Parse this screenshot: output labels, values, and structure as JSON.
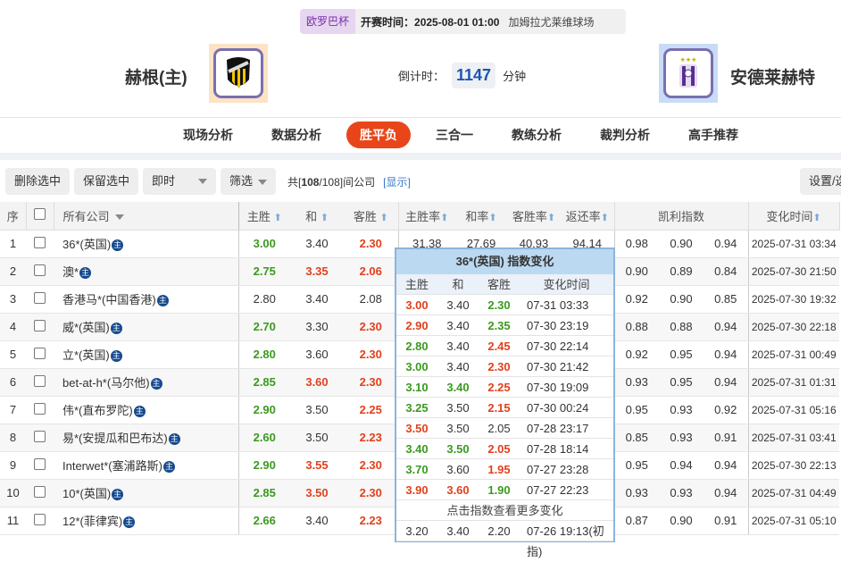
{
  "match": {
    "league": "欧罗巴杯",
    "kickoff": "开赛时间：2025-08-01 01:00",
    "venue": "加姆拉尤莱维球场",
    "home": "赫根(主)",
    "away": "安德莱赫特",
    "countdown_label": "倒计时：",
    "countdown_value": "1147",
    "countdown_unit": "分钟"
  },
  "nav": [
    "现场分析",
    "数据分析",
    "胜平负",
    "三合一",
    "教练分析",
    "裁判分析",
    "高手推荐"
  ],
  "nav_active": 2,
  "toolbar": {
    "delete": "删除选中",
    "keep": "保留选中",
    "mode": "即时",
    "filter": "筛选",
    "count_prefix": "共[",
    "count_a": "108",
    "count_b": "/108]间公司",
    "show": "[显示]",
    "settings": "设置/选择"
  },
  "columns": {
    "seq": "序",
    "company": "所有公司",
    "home": "主胜",
    "draw": "和",
    "away": "客胜",
    "home_rate": "主胜率",
    "draw_rate": "和率",
    "away_rate": "客胜率",
    "return_rate": "返还率",
    "kelly": "凯利指数",
    "time": "变化时间"
  },
  "badge": "主",
  "rows": [
    {
      "n": "1",
      "co": "36*(英国)",
      "h": "3.00",
      "hc": "g",
      "d": "3.40",
      "dc": "",
      "a": "2.30",
      "ac": "r",
      "hr": "31.38",
      "dr": "27.69",
      "ar": "40.93",
      "rr": "94.14",
      "k": [
        "0.98",
        "0.90",
        "0.94"
      ],
      "t": "2025-07-31 03:34"
    },
    {
      "n": "2",
      "co": "澳*",
      "h": "2.75",
      "hc": "g",
      "d": "3.35",
      "dc": "r",
      "a": "2.06",
      "ac": "r",
      "k": [
        "0.90",
        "0.89",
        "0.84"
      ],
      "t": "2025-07-30 21:50"
    },
    {
      "n": "3",
      "co": "香港马*(中国香港)",
      "h": "2.80",
      "hc": "",
      "d": "3.40",
      "dc": "",
      "a": "2.08",
      "ac": "",
      "k": [
        "0.92",
        "0.90",
        "0.85"
      ],
      "t": "2025-07-30 19:32"
    },
    {
      "n": "4",
      "co": "威*(英国)",
      "h": "2.70",
      "hc": "g",
      "d": "3.30",
      "dc": "",
      "a": "2.30",
      "ac": "r",
      "k": [
        "0.88",
        "0.88",
        "0.94"
      ],
      "t": "2025-07-30 22:18"
    },
    {
      "n": "5",
      "co": "立*(英国)",
      "h": "2.80",
      "hc": "g",
      "d": "3.60",
      "dc": "",
      "a": "2.30",
      "ac": "r",
      "k": [
        "0.92",
        "0.95",
        "0.94"
      ],
      "t": "2025-07-31 00:49"
    },
    {
      "n": "6",
      "co": "bet-at-h*(马尔他)",
      "h": "2.85",
      "hc": "g",
      "d": "3.60",
      "dc": "r",
      "a": "2.30",
      "ac": "r",
      "k": [
        "0.93",
        "0.95",
        "0.94"
      ],
      "t": "2025-07-31 01:31"
    },
    {
      "n": "7",
      "co": "伟*(直布罗陀)",
      "h": "2.90",
      "hc": "g",
      "d": "3.50",
      "dc": "",
      "a": "2.25",
      "ac": "r",
      "k": [
        "0.95",
        "0.93",
        "0.92"
      ],
      "t": "2025-07-31 05:16"
    },
    {
      "n": "8",
      "co": "易*(安提瓜和巴布达)",
      "h": "2.60",
      "hc": "g",
      "d": "3.50",
      "dc": "",
      "a": "2.23",
      "ac": "r",
      "k": [
        "0.85",
        "0.93",
        "0.91"
      ],
      "t": "2025-07-31 03:41"
    },
    {
      "n": "9",
      "co": "Interwet*(塞浦路斯)",
      "h": "2.90",
      "hc": "g",
      "d": "3.55",
      "dc": "r",
      "a": "2.30",
      "ac": "r",
      "k": [
        "0.95",
        "0.94",
        "0.94"
      ],
      "t": "2025-07-30 22:13"
    },
    {
      "n": "10",
      "co": "10*(英国)",
      "h": "2.85",
      "hc": "g",
      "d": "3.50",
      "dc": "r",
      "a": "2.30",
      "ac": "r",
      "k": [
        "0.93",
        "0.93",
        "0.94"
      ],
      "t": "2025-07-31 04:49"
    },
    {
      "n": "11",
      "co": "12*(菲律宾)",
      "h": "2.66",
      "hc": "g",
      "d": "3.40",
      "dc": "",
      "a": "2.23",
      "ac": "r",
      "k": [
        "0.87",
        "0.90",
        "0.91"
      ],
      "t": "2025-07-31 05:10"
    }
  ],
  "popup": {
    "title": "36*(英国) 指数变化",
    "head": [
      "主胜",
      "和",
      "客胜",
      "变化时间"
    ],
    "rows": [
      {
        "h": "3.00",
        "hc": "r",
        "d": "3.40",
        "dc": "",
        "a": "2.30",
        "ac": "g",
        "t": "07-31 03:33"
      },
      {
        "h": "2.90",
        "hc": "r",
        "d": "3.40",
        "dc": "",
        "a": "2.35",
        "ac": "g",
        "t": "07-30 23:19"
      },
      {
        "h": "2.80",
        "hc": "g",
        "d": "3.40",
        "dc": "",
        "a": "2.45",
        "ac": "r",
        "t": "07-30 22:14"
      },
      {
        "h": "3.00",
        "hc": "g",
        "d": "3.40",
        "dc": "",
        "a": "2.30",
        "ac": "r",
        "t": "07-30 21:42"
      },
      {
        "h": "3.10",
        "hc": "g",
        "d": "3.40",
        "dc": "g",
        "a": "2.25",
        "ac": "r",
        "t": "07-30 19:09"
      },
      {
        "h": "3.25",
        "hc": "g",
        "d": "3.50",
        "dc": "",
        "a": "2.15",
        "ac": "r",
        "t": "07-30 00:24"
      },
      {
        "h": "3.50",
        "hc": "r",
        "d": "3.50",
        "dc": "",
        "a": "2.05",
        "ac": "",
        "t": "07-28 23:17"
      },
      {
        "h": "3.40",
        "hc": "g",
        "d": "3.50",
        "dc": "g",
        "a": "2.05",
        "ac": "r",
        "t": "07-28 18:14"
      },
      {
        "h": "3.70",
        "hc": "g",
        "d": "3.60",
        "dc": "",
        "a": "1.95",
        "ac": "r",
        "t": "07-27 23:28"
      },
      {
        "h": "3.90",
        "hc": "r",
        "d": "3.60",
        "dc": "r",
        "a": "1.90",
        "ac": "g",
        "t": "07-27 22:23"
      }
    ],
    "more": "点击指数查看更多变化",
    "initial": {
      "h": "3.20",
      "d": "3.40",
      "a": "2.20",
      "t": "07-26 19:13(初指)"
    }
  },
  "colors": {
    "green": "#3a9a1e",
    "red": "#e2401c",
    "accent": "#e8461a",
    "link": "#3a78c8",
    "countdown": "#1a55b5"
  }
}
